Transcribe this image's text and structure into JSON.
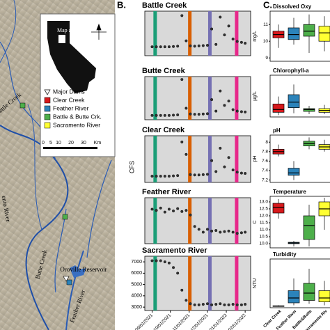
{
  "map": {
    "inset_label": "Map area",
    "legend": [
      "Major Dams",
      "Clear Creek",
      "Feather River",
      "Battle & Butte Crk.",
      "Sacramento River"
    ],
    "legend_colors": [
      "#ffffff",
      "#d7191c",
      "#2b83ba",
      "#4daf4a",
      "#ffff33"
    ],
    "scale": [
      "0",
      "5",
      "10",
      "20",
      "30",
      "Km"
    ],
    "labels": [
      "Battle Creek",
      "ento River",
      "Butte Creek",
      "Oroville Reservoir",
      "Feather River"
    ]
  },
  "panels": [
    "B.",
    "C."
  ],
  "chart_data": [
    {
      "type": "line",
      "title": "Battle Creek",
      "x": [
        "09/01/2021",
        "09/08/2021",
        "09/15/2021",
        "09/22/2021",
        "09/29/2021",
        "10/06/2021",
        "10/13/2021",
        "10/20/2021",
        "10/27/2021",
        "11/03/2021",
        "11/10/2021",
        "11/17/2021",
        "11/24/2021",
        "12/01/2021",
        "12/08/2021",
        "12/15/2021",
        "12/22/2021",
        "12/29/2021",
        "01/05/2022",
        "01/12/2022",
        "01/19/2022",
        "01/26/2022",
        "02/01/2022"
      ],
      "values": [
        300,
        300,
        300,
        300,
        300,
        310,
        320,
        1350,
        500,
        330,
        320,
        330,
        340,
        350,
        900,
        380,
        1300,
        700,
        1000,
        560,
        480,
        450,
        420
      ],
      "xlim": [
        "08/20/2021",
        "02/10/2022"
      ],
      "ylim": [
        0,
        1500
      ],
      "highlights": [
        {
          "x": "09/06/2021",
          "color": "#1b9e77"
        },
        {
          "x": "11/02/2021",
          "color": "#d95f02"
        },
        {
          "x": "12/05/2021",
          "color": "#7570b3"
        },
        {
          "x": "01/18/2022",
          "color": "#e7298a"
        }
      ]
    },
    {
      "type": "line",
      "title": "Butte Creek",
      "x": [
        "09/01/2021",
        "09/08/2021",
        "09/15/2021",
        "09/22/2021",
        "09/29/2021",
        "10/06/2021",
        "10/13/2021",
        "10/20/2021",
        "10/27/2021",
        "11/03/2021",
        "11/10/2021",
        "11/17/2021",
        "11/24/2021",
        "12/01/2021",
        "12/08/2021",
        "12/15/2021",
        "12/22/2021",
        "12/29/2021",
        "01/05/2022",
        "01/12/2022",
        "01/19/2022",
        "01/26/2022",
        "02/01/2022"
      ],
      "values": [
        150,
        150,
        150,
        150,
        150,
        160,
        170,
        1400,
        400,
        200,
        190,
        190,
        200,
        210,
        700,
        300,
        1000,
        500,
        650,
        350,
        300,
        280,
        270
      ],
      "xlim": [
        "08/20/2021",
        "02/10/2022"
      ],
      "ylim": [
        0,
        1500
      ],
      "highlights": [
        {
          "x": "09/06/2021",
          "color": "#1b9e77"
        },
        {
          "x": "11/02/2021",
          "color": "#d95f02"
        },
        {
          "x": "12/05/2021",
          "color": "#7570b3"
        },
        {
          "x": "01/18/2022",
          "color": "#e7298a"
        }
      ]
    },
    {
      "type": "line",
      "title": "Clear Creek",
      "x": [
        "09/01/2021",
        "09/08/2021",
        "09/15/2021",
        "09/22/2021",
        "09/29/2021",
        "10/06/2021",
        "10/13/2021",
        "10/20/2021",
        "10/27/2021",
        "11/03/2021",
        "11/10/2021",
        "11/17/2021",
        "11/24/2021",
        "12/01/2021",
        "12/08/2021",
        "12/15/2021",
        "12/22/2021",
        "12/29/2021",
        "01/05/2022",
        "01/12/2022",
        "01/19/2022",
        "01/26/2022",
        "02/01/2022"
      ],
      "values": [
        200,
        200,
        200,
        200,
        200,
        210,
        220,
        1300,
        900,
        250,
        240,
        240,
        250,
        260,
        700,
        350,
        1100,
        500,
        800,
        400,
        330,
        300,
        290
      ],
      "xlim": [
        "08/20/2021",
        "02/10/2022"
      ],
      "ylim": [
        0,
        1500
      ],
      "highlights": [
        {
          "x": "09/06/2021",
          "color": "#1b9e77"
        },
        {
          "x": "11/02/2021",
          "color": "#d95f02"
        },
        {
          "x": "12/05/2021",
          "color": "#7570b3"
        },
        {
          "x": "01/18/2022",
          "color": "#e7298a"
        }
      ]
    },
    {
      "type": "line",
      "title": "Feather River",
      "x": [
        "09/01/2021",
        "09/08/2021",
        "09/15/2021",
        "09/22/2021",
        "09/29/2021",
        "10/06/2021",
        "10/13/2021",
        "10/20/2021",
        "10/27/2021",
        "11/03/2021",
        "11/10/2021",
        "11/17/2021",
        "11/24/2021",
        "12/01/2021",
        "12/08/2021",
        "12/15/2021",
        "12/22/2021",
        "12/29/2021",
        "01/05/2022",
        "01/12/2022",
        "01/19/2022",
        "01/26/2022",
        "02/01/2022"
      ],
      "values": [
        1500,
        1480,
        1520,
        1450,
        1500,
        1470,
        1510,
        1460,
        1480,
        1400,
        1200,
        1150,
        1100,
        1150,
        1120,
        1130,
        1100,
        1110,
        1120,
        1100,
        1080,
        1090,
        1100
      ],
      "xlim": [
        "08/20/2021",
        "02/10/2022"
      ],
      "ylim": [
        900,
        1700
      ],
      "highlights": [
        {
          "x": "09/06/2021",
          "color": "#1b9e77"
        },
        {
          "x": "11/02/2021",
          "color": "#d95f02"
        },
        {
          "x": "12/05/2021",
          "color": "#7570b3"
        },
        {
          "x": "01/18/2022",
          "color": "#e7298a"
        }
      ]
    },
    {
      "type": "line",
      "title": "Sacramento River",
      "y_label": "CFS",
      "x": [
        "09/01/2021",
        "09/08/2021",
        "09/15/2021",
        "09/22/2021",
        "09/29/2021",
        "10/06/2021",
        "10/13/2021",
        "10/20/2021",
        "10/27/2021",
        "11/03/2021",
        "11/10/2021",
        "11/17/2021",
        "11/24/2021",
        "12/01/2021",
        "12/08/2021",
        "12/15/2021",
        "12/22/2021",
        "12/29/2021",
        "01/05/2022",
        "01/12/2022",
        "01/19/2022",
        "01/26/2022",
        "02/01/2022"
      ],
      "values": [
        7100,
        7100,
        7100,
        7000,
        6900,
        6500,
        6000,
        4500,
        3600,
        3300,
        3200,
        3200,
        3250,
        3300,
        3200,
        3250,
        3300,
        3200,
        3200,
        3250,
        3200,
        3200,
        3250
      ],
      "xlim": [
        "08/20/2021",
        "02/10/2022"
      ],
      "ylim": [
        2700,
        7500
      ],
      "yticks": [
        3000,
        4000,
        5000,
        6000,
        7000
      ],
      "xticks": [
        "09/01/2021",
        "10/01/2021",
        "11/01/2021",
        "12/01/2021",
        "01/01/2022",
        "02/01/2022"
      ],
      "highlights": [
        {
          "x": "09/06/2021",
          "color": "#1b9e77"
        },
        {
          "x": "11/02/2021",
          "color": "#d95f02"
        },
        {
          "x": "12/05/2021",
          "color": "#7570b3"
        },
        {
          "x": "01/18/2022",
          "color": "#e7298a"
        }
      ]
    },
    {
      "type": "box",
      "title": "Dissolved Oxy",
      "y_label": "mg/L",
      "categories": [
        "Clear Creek",
        "Feather River",
        "Battle&Butte",
        "Sacramento Riv"
      ],
      "colors": [
        "#d7191c",
        "#2b83ba",
        "#4daf4a",
        "#ffff33"
      ],
      "boxes": [
        [
          9.6,
          10.2,
          10.4,
          10.6,
          11.0
        ],
        [
          9.8,
          10.1,
          10.4,
          10.8,
          11.4
        ],
        [
          9.3,
          10.3,
          10.6,
          11.0,
          11.6
        ],
        [
          9.4,
          10.0,
          10.5,
          10.9,
          11.5
        ]
      ],
      "ylim": [
        8.8,
        11.8
      ],
      "yticks": [
        9,
        10,
        11
      ]
    },
    {
      "type": "box",
      "title": "Chlorophyll-a",
      "y_label": "µg/L",
      "categories": [
        "Clear Creek",
        "Feather River",
        "Battle&Butte",
        "Sacramento Riv"
      ],
      "colors": [
        "#d7191c",
        "#2b83ba",
        "#4daf4a",
        "#ffff33"
      ],
      "boxes": [
        [
          0.2,
          0.5,
          0.8,
          1.4,
          2.2
        ],
        [
          0.4,
          1.0,
          1.6,
          2.4,
          3.5
        ],
        [
          0.3,
          0.6,
          0.8,
          0.9,
          1.2
        ],
        [
          0.3,
          0.5,
          0.7,
          0.9,
          1.3
        ]
      ],
      "ylim": [
        0,
        4.5
      ]
    },
    {
      "type": "box",
      "title": "pH",
      "y_label": "pH",
      "categories": [
        "Clear Creek",
        "Feather River",
        "Battle&Butte",
        "Sacramento Riv"
      ],
      "colors": [
        "#d7191c",
        "#2b83ba",
        "#4daf4a",
        "#ffff33"
      ],
      "boxes": [
        [
          7.7,
          7.75,
          7.8,
          7.85,
          7.95
        ],
        [
          7.2,
          7.3,
          7.35,
          7.45,
          7.6
        ],
        [
          7.85,
          7.92,
          7.97,
          8.02,
          8.1
        ],
        [
          7.8,
          7.85,
          7.9,
          7.95,
          8.05
        ]
      ],
      "ylim": [
        7.15,
        8.15
      ],
      "yticks": [
        7.2,
        7.4,
        7.6,
        7.8,
        8.0
      ]
    },
    {
      "type": "box",
      "title": "Temperature",
      "y_label": "C",
      "categories": [
        "Clear Creek",
        "Feather River",
        "Battle&Butte",
        "Sacramento Riv"
      ],
      "colors": [
        "#d7191c",
        "#2b83ba",
        "#4daf4a",
        "#ffff33"
      ],
      "boxes": [
        [
          11.8,
          12.2,
          12.6,
          12.9,
          13.2
        ],
        [
          9.8,
          10.0,
          10.05,
          10.1,
          10.2
        ],
        [
          9.8,
          10.3,
          11.3,
          12.0,
          12.8
        ],
        [
          11.0,
          12.0,
          12.5,
          13.0,
          13.3
        ]
      ],
      "ylim": [
        9.7,
        13.4
      ],
      "yticks": [
        {
          "value": 10,
          "label": "10.0"
        },
        10.5,
        {
          "value": 11,
          "label": "11.0"
        },
        11.5,
        {
          "value": 12,
          "label": "12.0"
        },
        12.5,
        {
          "value": 13,
          "label": "13.0"
        }
      ]
    },
    {
      "type": "box",
      "title": "Turbidity",
      "y_label": "NTU",
      "categories": [
        "Clear Creek",
        "Feather River",
        "Battle&Butte",
        "Sacramento Riv"
      ],
      "colors": [
        "#d7191c",
        "#2b83ba",
        "#4daf4a",
        "#ffff33"
      ],
      "boxes": [
        [
          0.2,
          0.3,
          0.35,
          0.4,
          0.5
        ],
        [
          0.5,
          1.0,
          2.0,
          3.5,
          6.0
        ],
        [
          0.8,
          1.5,
          3.0,
          5.0,
          8.0
        ],
        [
          0.5,
          1.2,
          2.0,
          3.5,
          5.5
        ]
      ],
      "ylim": [
        0,
        10
      ],
      "show_categories": true
    }
  ]
}
